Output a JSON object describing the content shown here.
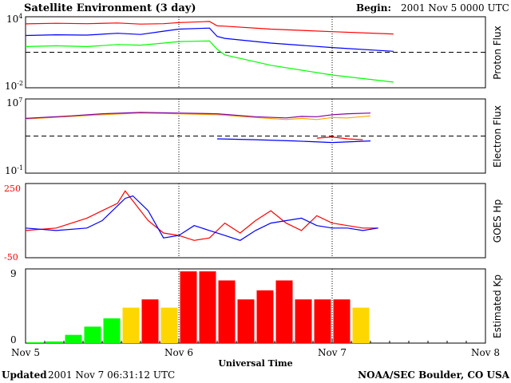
{
  "header": {
    "title": "Satellite Environment (3 day)",
    "begin_label": "Begin:",
    "begin_value": "2001 Nov 5 0000 UTC"
  },
  "footer": {
    "updated_label": "Updated",
    "updated_value": "2001 Nov  7 06:31:12 UTC",
    "credit": "NOAA/SEC Boulder, CO USA"
  },
  "x_axis": {
    "title": "Universal Time",
    "tick_labels": [
      "Nov 5",
      "Nov 6",
      "Nov 7",
      "Nov 8"
    ]
  },
  "chart_data": [
    {
      "type": "line",
      "ylabel": "Proton Flux",
      "y_scale": "log",
      "ylim": [
        0.01,
        10000
      ],
      "ytick_labels": {
        "base": "10",
        "top_exp": "4",
        "bottom_exp": "-2"
      },
      "x_unit": "days since Nov 5 0000 UTC",
      "threshold": 10,
      "series": [
        {
          "color": "#ff0000",
          "x": [
            0,
            0.2,
            0.4,
            0.6,
            0.75,
            0.9,
            1.0,
            1.2,
            1.25,
            1.3,
            1.6,
            2.0,
            2.4
          ],
          "y": [
            2500,
            2800,
            2600,
            3000,
            2400,
            2600,
            3200,
            4000,
            1700,
            1600,
            900,
            550,
            350
          ]
        },
        {
          "color": "#0000ff",
          "x": [
            0,
            0.2,
            0.4,
            0.6,
            0.75,
            0.9,
            1.0,
            1.2,
            1.25,
            1.3,
            1.6,
            2.0,
            2.4
          ],
          "y": [
            260,
            300,
            280,
            400,
            320,
            600,
            900,
            1100,
            220,
            150,
            60,
            25,
            12
          ]
        },
        {
          "color": "#00ff00",
          "x": [
            0,
            0.2,
            0.4,
            0.6,
            0.75,
            0.9,
            1.0,
            1.2,
            1.25,
            1.3,
            1.6,
            2.0,
            2.4
          ],
          "y": [
            30,
            35,
            30,
            45,
            40,
            60,
            80,
            90,
            18,
            6,
            0.8,
            0.12,
            0.03
          ]
        }
      ]
    },
    {
      "type": "line",
      "ylabel": "Electron Flux",
      "y_scale": "log",
      "ylim": [
        0.1,
        10000000
      ],
      "ytick_labels": {
        "base": "10",
        "top_exp": "7",
        "bottom_exp": "-1"
      },
      "x_unit": "days since Nov 5 0000 UTC",
      "threshold": 1000,
      "series": [
        {
          "color": "#ffa500",
          "x": [
            0,
            0.3,
            0.5,
            0.75,
            1.0,
            1.25,
            1.5,
            1.7,
            1.8,
            1.9,
            2.0,
            2.1,
            2.25
          ],
          "y": [
            70000,
            130000,
            200000,
            300000,
            250000,
            200000,
            100000,
            60000,
            80000,
            60000,
            100000,
            90000,
            150000
          ]
        },
        {
          "color": "#8000a0",
          "x": [
            0,
            0.3,
            0.5,
            0.75,
            1.0,
            1.25,
            1.5,
            1.7,
            1.8,
            1.9,
            2.0,
            2.1,
            2.25
          ],
          "y": [
            80000,
            150000,
            250000,
            350000,
            300000,
            250000,
            120000,
            90000,
            130000,
            120000,
            200000,
            250000,
            300000
          ]
        },
        {
          "color": "#0000ff",
          "x": [
            1.25,
            1.5,
            1.75,
            2.0,
            2.25
          ],
          "y": [
            500,
            400,
            300,
            200,
            300
          ]
        },
        {
          "color": "#ff0000",
          "x": [
            1.9,
            2.0,
            2.1,
            2.2
          ],
          "y": [
            600,
            800,
            500,
            400
          ]
        }
      ]
    },
    {
      "type": "line",
      "ylabel": "GOES Hp",
      "ylim": [
        -50,
        250
      ],
      "ytick_labels": [
        "250",
        "-50"
      ],
      "x_unit": "days since Nov 5 0000 UTC",
      "series": [
        {
          "color": "#ff0000",
          "x": [
            0,
            0.2,
            0.4,
            0.5,
            0.6,
            0.65,
            0.7,
            0.8,
            0.9,
            1.0,
            1.1,
            1.2,
            1.3,
            1.4,
            1.5,
            1.6,
            1.7,
            1.8,
            1.9,
            2.0,
            2.1,
            2.2,
            2.3
          ],
          "y": [
            60,
            70,
            110,
            140,
            170,
            220,
            180,
            100,
            50,
            40,
            20,
            30,
            90,
            50,
            100,
            140,
            90,
            60,
            120,
            90,
            80,
            70,
            70
          ]
        },
        {
          "color": "#0000ff",
          "x": [
            0,
            0.2,
            0.4,
            0.5,
            0.6,
            0.65,
            0.7,
            0.8,
            0.9,
            1.0,
            1.1,
            1.2,
            1.3,
            1.4,
            1.5,
            1.6,
            1.7,
            1.8,
            1.9,
            2.0,
            2.1,
            2.2,
            2.3
          ],
          "y": [
            70,
            60,
            70,
            100,
            160,
            190,
            200,
            140,
            30,
            40,
            80,
            60,
            40,
            20,
            60,
            90,
            100,
            110,
            80,
            70,
            70,
            60,
            70
          ]
        }
      ]
    },
    {
      "type": "bar",
      "ylabel": "Estimated Kp",
      "ylim": [
        0,
        9
      ],
      "ytick_labels": [
        "9",
        "0"
      ],
      "x_unit": "days since Nov 5 0000 UTC",
      "bar_width_days": 0.125,
      "values": [
        0.1,
        0.2,
        1,
        2,
        3,
        4.3,
        5.3,
        4.3,
        8.7,
        8.7,
        7.6,
        5.3,
        6.4,
        7.6,
        5.3,
        5.3,
        5.3,
        4.3
      ],
      "colors": [
        "#00ff00",
        "#00ff00",
        "#00ff00",
        "#00ff00",
        "#00ff00",
        "#ffd700",
        "#ff0000",
        "#ffd700",
        "#ff0000",
        "#ff0000",
        "#ff0000",
        "#ff0000",
        "#ff0000",
        "#ff0000",
        "#ff0000",
        "#ff0000",
        "#ff0000",
        "#ffd700"
      ]
    }
  ]
}
